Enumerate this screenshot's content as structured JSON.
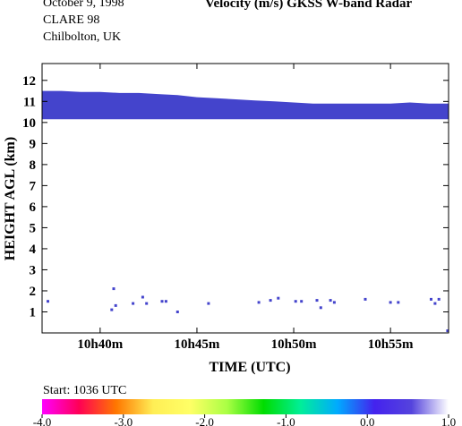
{
  "header": {
    "date": "October   9, 1998",
    "campaign": "CLARE 98",
    "site": "Chilbolton, UK",
    "title": "Velocity (m/s)   GKSS  W-band Radar"
  },
  "chart_data": {
    "type": "heatmap",
    "xlabel": "TIME (UTC)",
    "ylabel": "HEIGHT AGL (km)",
    "xlim": [
      37,
      58
    ],
    "ylim": [
      0,
      12.8
    ],
    "x_ticks": [
      40,
      45,
      50,
      55
    ],
    "x_tick_labels": [
      "10h40m",
      "10h45m",
      "10h50m",
      "10h55m"
    ],
    "y_ticks": [
      1,
      2,
      3,
      4,
      5,
      6,
      7,
      8,
      9,
      10,
      11,
      12
    ],
    "y_tick_labels": [
      "1",
      "2",
      "3",
      "4",
      "5",
      "6",
      "7",
      "8",
      "9",
      "10",
      "11",
      "12"
    ],
    "start_label": "Start: 1036 UTC",
    "cloud_color": "#4444cc",
    "cloud_layer": {
      "time_min": [
        37,
        38,
        39,
        40,
        41,
        42,
        43,
        44,
        45,
        46,
        47,
        48,
        49,
        50,
        51,
        52,
        53,
        54,
        55,
        56,
        57,
        58
      ],
      "top_km": [
        11.5,
        11.5,
        11.45,
        11.45,
        11.4,
        11.4,
        11.35,
        11.3,
        11.2,
        11.15,
        11.1,
        11.05,
        11.0,
        10.95,
        10.9,
        10.9,
        10.9,
        10.9,
        10.9,
        10.95,
        10.9,
        10.9
      ],
      "base_km": [
        10.15,
        10.15,
        10.15,
        10.15,
        10.15,
        10.15,
        10.15,
        10.15,
        10.15,
        10.15,
        10.15,
        10.15,
        10.15,
        10.15,
        10.15,
        10.15,
        10.15,
        10.15,
        10.15,
        10.15,
        10.15,
        10.15
      ]
    },
    "echo_points": [
      {
        "t": 37.3,
        "h": 1.5
      },
      {
        "t": 40.7,
        "h": 2.1
      },
      {
        "t": 40.6,
        "h": 1.1
      },
      {
        "t": 40.8,
        "h": 1.3
      },
      {
        "t": 41.7,
        "h": 1.4
      },
      {
        "t": 42.2,
        "h": 1.7
      },
      {
        "t": 42.4,
        "h": 1.4
      },
      {
        "t": 43.2,
        "h": 1.5
      },
      {
        "t": 43.4,
        "h": 1.5
      },
      {
        "t": 44.0,
        "h": 1.0
      },
      {
        "t": 45.6,
        "h": 1.4
      },
      {
        "t": 48.2,
        "h": 1.45
      },
      {
        "t": 48.8,
        "h": 1.55
      },
      {
        "t": 49.2,
        "h": 1.65
      },
      {
        "t": 50.1,
        "h": 1.5
      },
      {
        "t": 50.4,
        "h": 1.5
      },
      {
        "t": 51.2,
        "h": 1.55
      },
      {
        "t": 51.4,
        "h": 1.2
      },
      {
        "t": 51.9,
        "h": 1.55
      },
      {
        "t": 52.1,
        "h": 1.45
      },
      {
        "t": 53.7,
        "h": 1.6
      },
      {
        "t": 55.0,
        "h": 1.45
      },
      {
        "t": 55.4,
        "h": 1.45
      },
      {
        "t": 57.1,
        "h": 1.6
      },
      {
        "t": 57.3,
        "h": 1.4
      },
      {
        "t": 57.5,
        "h": 1.6
      },
      {
        "t": 57.95,
        "h": 0.1
      }
    ],
    "colorbar": {
      "ticks": [
        -4.0,
        -3.0,
        -2.0,
        -1.0,
        0.0,
        1.0
      ],
      "tick_labels": [
        "-4.0",
        "-3.0",
        "-2.0",
        "-1.0",
        "0.0",
        "1.0"
      ],
      "range": [
        -4.0,
        1.0
      ],
      "stops": [
        "#ff00ff",
        "#ff0055",
        "#ff7700",
        "#ffee55",
        "#ffff66",
        "#aaff44",
        "#00dd00",
        "#00ee99",
        "#00aaff",
        "#4422ee",
        "#5544dd",
        "#ffffff"
      ]
    }
  }
}
